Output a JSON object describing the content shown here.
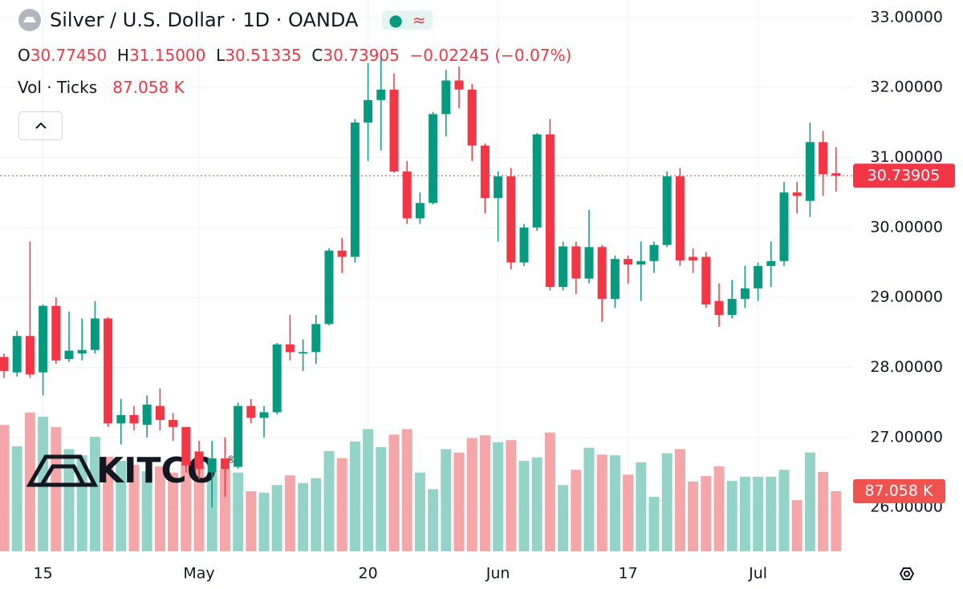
{
  "chart_data": {
    "type": "candlestick",
    "title": "Silver / U.S. Dollar · 1D · OANDA",
    "ohlc_header": {
      "o": "O",
      "open": "30.77450",
      "h": "H",
      "high": "31.15000",
      "l": "L",
      "low": "30.51335",
      "c": "C",
      "close": "30.73905",
      "change": "−0.02245 (−0.07%)"
    },
    "volume_header": "Vol · Ticks",
    "last_volume_label": "87.058 K",
    "last_price_label": "30.73905",
    "watermark": "KITCO",
    "watermark_mark": "®",
    "categories": [
      null,
      null,
      null,
      "15",
      null,
      null,
      null,
      null,
      null,
      null,
      null,
      null,
      null,
      null,
      null,
      "May",
      null,
      null,
      null,
      null,
      null,
      null,
      null,
      null,
      null,
      null,
      null,
      null,
      "20",
      null,
      null,
      null,
      null,
      null,
      null,
      null,
      null,
      null,
      "Jun",
      null,
      null,
      null,
      null,
      null,
      null,
      null,
      null,
      null,
      "17",
      null,
      null,
      null,
      null,
      null,
      null,
      null,
      null,
      null,
      "Jul",
      null,
      null,
      null,
      null,
      null,
      null
    ],
    "open": [
      28.15,
      27.93,
      28.45,
      27.93,
      28.88,
      28.12,
      28.2,
      28.25,
      28.7,
      27.2,
      27.32,
      27.18,
      27.45,
      27.25,
      27.15,
      26.8,
      26.5,
      26.7,
      26.58,
      27.45,
      27.28,
      27.36,
      28.33,
      28.2,
      28.22,
      28.62,
      29.67,
      29.58,
      31.5,
      31.82,
      31.97,
      30.8,
      30.13,
      30.35,
      31.62,
      32.1,
      31.97,
      31.17,
      30.42,
      30.73,
      29.5,
      30.0,
      31.33,
      29.15,
      29.73,
      29.27,
      29.72,
      28.98,
      29.55,
      29.47,
      29.52,
      29.75,
      30.73,
      29.58,
      29.58,
      28.95,
      28.75,
      28.98,
      29.13,
      29.45,
      29.52,
      30.5,
      30.38,
      31.22,
      30.7745
    ],
    "high": [
      28.2,
      28.52,
      29.8,
      28.9,
      29.0,
      28.8,
      28.7,
      28.95,
      28.72,
      27.55,
      27.45,
      27.6,
      27.7,
      27.35,
      27.15,
      26.95,
      26.95,
      27.0,
      27.5,
      27.55,
      27.45,
      28.35,
      28.75,
      28.4,
      28.75,
      29.7,
      29.85,
      31.55,
      32.35,
      32.45,
      32.2,
      30.95,
      30.5,
      31.65,
      32.25,
      32.3,
      32.05,
      31.2,
      30.8,
      30.85,
      30.05,
      31.35,
      31.55,
      29.8,
      29.8,
      30.25,
      29.75,
      29.6,
      29.6,
      29.8,
      29.8,
      30.8,
      30.85,
      29.7,
      29.65,
      29.2,
      29.25,
      29.45,
      29.5,
      29.8,
      30.65,
      30.65,
      31.5,
      31.38,
      31.15
    ],
    "low": [
      27.85,
      27.87,
      27.85,
      27.6,
      28.05,
      28.08,
      28.1,
      28.2,
      27.15,
      26.9,
      27.1,
      27.0,
      27.1,
      26.95,
      26.5,
      26.4,
      26.0,
      26.15,
      26.55,
      27.2,
      27.0,
      27.33,
      28.1,
      27.95,
      28.05,
      28.6,
      29.35,
      29.5,
      30.95,
      31.1,
      30.78,
      30.05,
      30.05,
      30.33,
      31.3,
      31.7,
      30.95,
      30.2,
      29.8,
      29.4,
      29.45,
      29.95,
      29.1,
      29.1,
      29.05,
      29.2,
      28.65,
      28.85,
      29.2,
      28.95,
      29.35,
      29.72,
      29.45,
      29.35,
      28.85,
      28.58,
      28.7,
      28.85,
      28.95,
      29.15,
      29.45,
      30.2,
      30.15,
      30.45,
      30.51335
    ],
    "close": [
      27.95,
      28.45,
      27.9,
      28.88,
      28.1,
      28.24,
      28.25,
      28.7,
      27.2,
      27.32,
      27.2,
      27.47,
      27.25,
      27.15,
      26.6,
      26.55,
      26.7,
      26.55,
      27.45,
      27.28,
      27.36,
      28.33,
      28.22,
      28.22,
      28.62,
      29.67,
      29.58,
      31.5,
      31.82,
      31.97,
      30.8,
      30.13,
      30.35,
      31.62,
      32.1,
      31.97,
      31.17,
      30.42,
      30.73,
      29.5,
      30.0,
      31.33,
      29.15,
      29.73,
      29.27,
      29.72,
      28.98,
      29.55,
      29.47,
      29.52,
      29.75,
      30.73,
      29.53,
      29.53,
      28.9,
      28.75,
      28.98,
      29.13,
      29.45,
      29.52,
      30.5,
      30.45,
      31.22,
      30.76,
      30.73905
    ],
    "volume": [
      183,
      152,
      201,
      195,
      180,
      148,
      139,
      166,
      137,
      131,
      125,
      116,
      123,
      114,
      128,
      125,
      114,
      119,
      114,
      87,
      85,
      96,
      110,
      99,
      106,
      145,
      135,
      159,
      177,
      151,
      169,
      177,
      114,
      90,
      148,
      143,
      164,
      168,
      158,
      161,
      131,
      136,
      172,
      96,
      118,
      150,
      140,
      139,
      111,
      129,
      79,
      142,
      148,
      101,
      109,
      123,
      102,
      108,
      108,
      108,
      118,
      74,
      143,
      115,
      87.058
    ],
    "up_color": "#089981",
    "down_color": "#f23645",
    "up_volume_color": "#93d3c8",
    "down_volume_color": "#f5a6a8",
    "ylim": [
      25.35,
      33.25
    ],
    "yticks": [
      {
        "value": 26,
        "label": "26.00000"
      },
      {
        "value": 27,
        "label": "27.00000"
      },
      {
        "value": 28,
        "label": "28.00000"
      },
      {
        "value": 29,
        "label": "29.00000"
      },
      {
        "value": 30,
        "label": "30.00000"
      },
      {
        "value": 31,
        "label": "31.00000"
      },
      {
        "value": 32,
        "label": "32.00000"
      },
      {
        "value": 33,
        "label": "33.00000"
      }
    ],
    "volume_lim": [
      0,
      232
    ],
    "grid": true
  }
}
